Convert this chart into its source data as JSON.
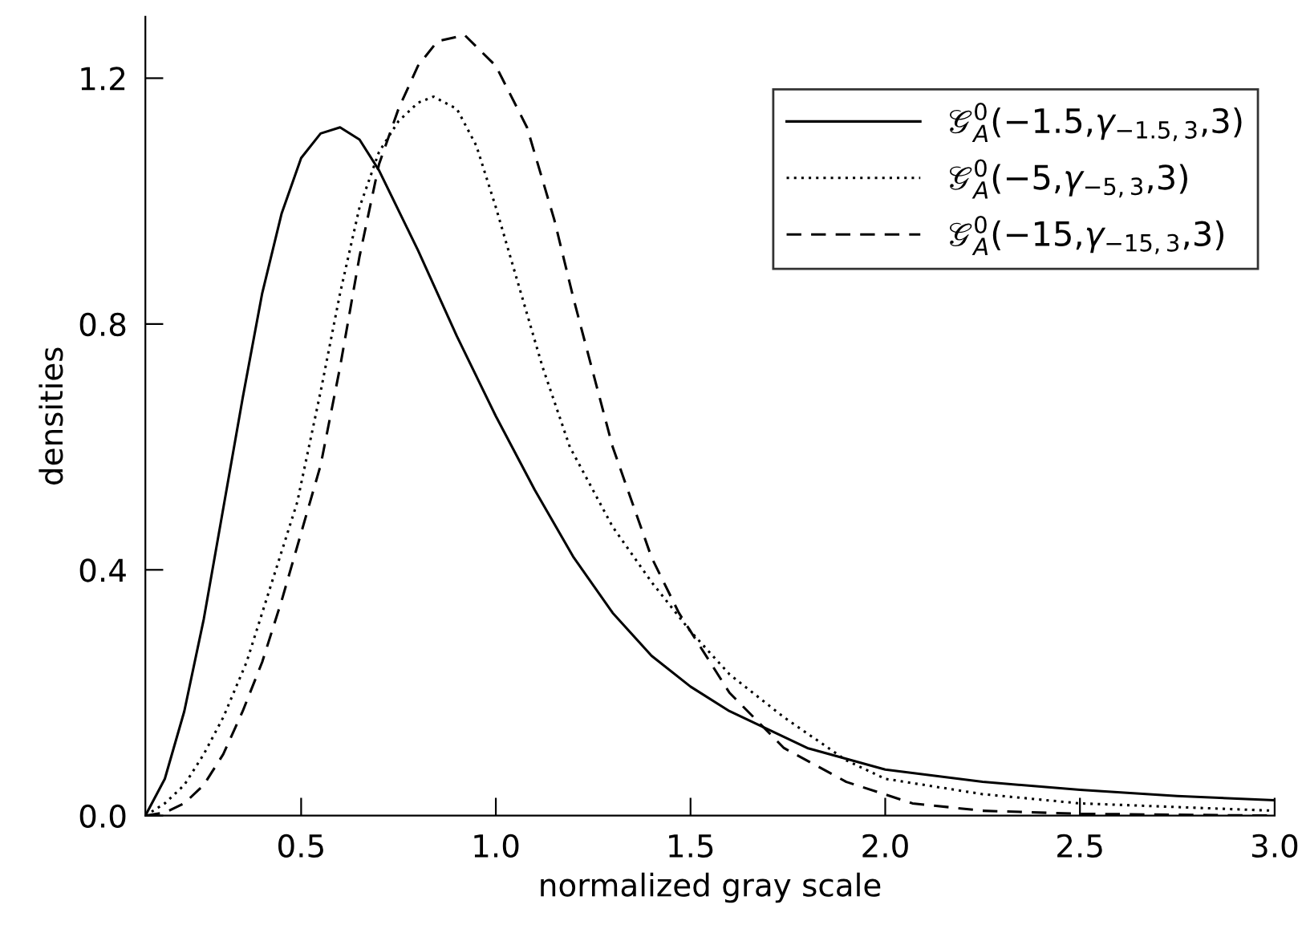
{
  "chart_data": {
    "type": "line",
    "xlabel": "normalized gray scale",
    "ylabel": "densities",
    "xlim": [
      0.1,
      3.0
    ],
    "ylim": [
      0,
      1.3
    ],
    "xticks": [
      {
        "value": 0.5,
        "label": "0.5"
      },
      {
        "value": 1.0,
        "label": "1.0"
      },
      {
        "value": 1.5,
        "label": "1.5"
      },
      {
        "value": 2.0,
        "label": "2.0"
      },
      {
        "value": 2.5,
        "label": "2.5"
      },
      {
        "value": 3.0,
        "label": "3.0"
      }
    ],
    "yticks": [
      {
        "value": 0,
        "label": "0.0"
      },
      {
        "value": 0.4,
        "label": "0.4"
      },
      {
        "value": 0.8,
        "label": "0.8"
      },
      {
        "value": 1.2,
        "label": "1.2"
      }
    ],
    "grid": false,
    "legend": "top right",
    "marker": "none",
    "series": [
      {
        "name": "𝒢$^{0}$$_{A}$(−1.5,γ$_{−1.5,3}$,3)",
        "color": "#000000",
        "line_style": "solid",
        "x": [
          0.1,
          0.15,
          0.2,
          0.25,
          0.3,
          0.35,
          0.4,
          0.45,
          0.5,
          0.55,
          0.6,
          0.65,
          0.7,
          0.8,
          0.9,
          1.0,
          1.1,
          1.2,
          1.3,
          1.4,
          1.5,
          1.6,
          1.7,
          1.8,
          2.0,
          2.25,
          2.5,
          2.75,
          3.0
        ],
        "values": [
          0,
          0.06,
          0.17,
          0.32,
          0.5,
          0.68,
          0.85,
          0.98,
          1.07,
          1.11,
          1.12,
          1.1,
          1.05,
          0.92,
          0.78,
          0.65,
          0.53,
          0.42,
          0.33,
          0.26,
          0.21,
          0.17,
          0.14,
          0.11,
          0.075,
          0.055,
          0.042,
          0.032,
          0.025
        ]
      },
      {
        "name": "𝒢$^{0}$$_{A}$(−5,γ$_{−5,3}$,3)",
        "color": "#000000",
        "line_style": "dotted",
        "x": [
          0.1,
          0.15,
          0.2,
          0.25,
          0.3,
          0.36,
          0.42,
          0.49,
          0.55,
          0.6,
          0.65,
          0.7,
          0.75,
          0.8,
          0.84,
          0.9,
          0.95,
          1.0,
          1.06,
          1.12,
          1.19,
          1.3,
          1.4,
          1.5,
          1.6,
          1.74,
          1.9,
          2.0,
          2.25,
          2.5,
          3.0
        ],
        "values": [
          0,
          0.02,
          0.05,
          0.1,
          0.16,
          0.25,
          0.37,
          0.51,
          0.69,
          0.85,
          0.99,
          1.08,
          1.13,
          1.16,
          1.17,
          1.15,
          1.09,
          0.99,
          0.86,
          0.73,
          0.6,
          0.47,
          0.38,
          0.3,
          0.23,
          0.16,
          0.09,
          0.06,
          0.035,
          0.02,
          0.008
        ]
      },
      {
        "name": "𝒢$^{0}$$_{A}$(−15,γ$_{−15,3}$,3)",
        "color": "#000000",
        "line_style": "dashed",
        "x": [
          0.1,
          0.15,
          0.2,
          0.25,
          0.3,
          0.35,
          0.4,
          0.45,
          0.5,
          0.55,
          0.6,
          0.65,
          0.7,
          0.75,
          0.8,
          0.85,
          0.92,
          1.0,
          1.08,
          1.15,
          1.2,
          1.3,
          1.4,
          1.47,
          1.6,
          1.74,
          1.9,
          2.07,
          2.25,
          2.5,
          3.0
        ],
        "values": [
          0,
          0.005,
          0.02,
          0.05,
          0.1,
          0.17,
          0.25,
          0.35,
          0.46,
          0.57,
          0.73,
          0.91,
          1.06,
          1.15,
          1.22,
          1.26,
          1.27,
          1.22,
          1.12,
          0.97,
          0.84,
          0.6,
          0.42,
          0.33,
          0.2,
          0.11,
          0.055,
          0.02,
          0.008,
          0.003,
          0
        ]
      }
    ]
  }
}
